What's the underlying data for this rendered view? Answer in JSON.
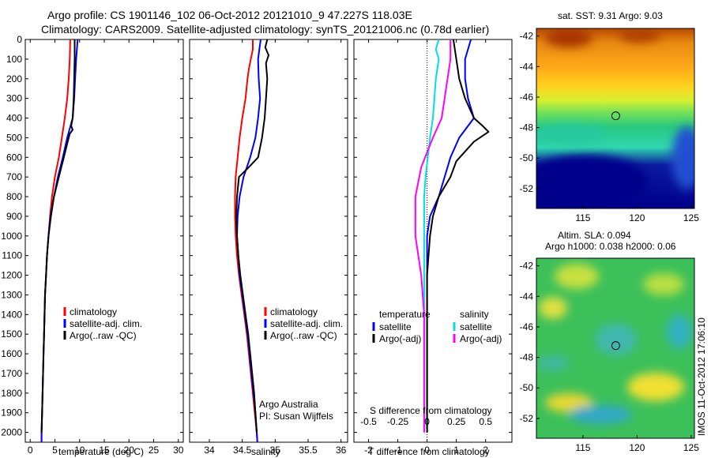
{
  "title": {
    "line1": "Argo profile: CS 1901146_102 06-Oct-2012 20121010_9 47.227S 118.03E",
    "line2": "Climatology: CARS2009. Satellite-adjusted climatology: synTS_20121006.nc (0.78d earlier)"
  },
  "credit": {
    "line1": "Argo Australia",
    "line2": "PI: Susan Wijffels"
  },
  "stamp": "IMOS 11-Oct-2012 17:06:10",
  "colors": {
    "climatology": "#ff0000",
    "satellite": "#0000ff",
    "argo": "#000000",
    "sal_satellite": "#00e0e0",
    "sal_argo": "#ff00ff"
  },
  "chart_data": [
    {
      "id": "temperature",
      "type": "line",
      "xlabel": "temperature (deg C)",
      "xlim": [
        -1,
        31
      ],
      "xticks": [
        0,
        5,
        10,
        15,
        20,
        25,
        30
      ],
      "ylim": [
        0,
        2050
      ],
      "yticks": [
        0,
        100,
        200,
        300,
        400,
        500,
        600,
        700,
        800,
        900,
        1000,
        1100,
        1200,
        1300,
        1400,
        1500,
        1600,
        1700,
        1800,
        1900,
        2000
      ],
      "legend": [
        "climatology",
        "satellite-adj. clim.",
        "Argo(..raw -QC)"
      ],
      "series": [
        {
          "name": "climatology",
          "color": "#ff0000",
          "points": [
            [
              8.1,
              0
            ],
            [
              8.0,
              100
            ],
            [
              7.8,
              200
            ],
            [
              7.5,
              300
            ],
            [
              7.0,
              400
            ],
            [
              6.4,
              500
            ],
            [
              5.8,
              600
            ],
            [
              5.0,
              700
            ],
            [
              4.4,
              800
            ],
            [
              4.0,
              900
            ],
            [
              3.7,
              1000
            ],
            [
              3.4,
              1100
            ],
            [
              3.2,
              1200
            ],
            [
              3.0,
              1300
            ],
            [
              2.9,
              1400
            ],
            [
              2.8,
              1500
            ],
            [
              2.7,
              1600
            ],
            [
              2.6,
              1700
            ],
            [
              2.5,
              1800
            ],
            [
              2.4,
              1900
            ],
            [
              2.3,
              2000
            ],
            [
              2.3,
              2050
            ]
          ]
        },
        {
          "name": "satellite-adj. clim.",
          "color": "#0000ff",
          "points": [
            [
              9.6,
              0
            ],
            [
              9.3,
              100
            ],
            [
              9.1,
              200
            ],
            [
              8.9,
              300
            ],
            [
              8.6,
              400
            ],
            [
              7.5,
              500
            ],
            [
              6.6,
              600
            ],
            [
              5.6,
              700
            ],
            [
              4.8,
              800
            ],
            [
              4.1,
              900
            ],
            [
              3.7,
              1000
            ],
            [
              3.4,
              1100
            ],
            [
              3.2,
              1200
            ],
            [
              3.0,
              1300
            ],
            [
              2.9,
              1400
            ],
            [
              2.8,
              1500
            ],
            [
              2.7,
              1600
            ],
            [
              2.6,
              1700
            ],
            [
              2.5,
              1800
            ],
            [
              2.4,
              1900
            ],
            [
              2.3,
              2000
            ],
            [
              2.3,
              2050
            ]
          ]
        },
        {
          "name": "Argo(..raw -QC)",
          "color": "#000000",
          "points": [
            [
              9.0,
              0
            ],
            [
              9.0,
              100
            ],
            [
              8.9,
              200
            ],
            [
              8.8,
              300
            ],
            [
              8.6,
              400
            ],
            [
              8.3,
              440
            ],
            [
              8.6,
              460
            ],
            [
              8.0,
              480
            ],
            [
              7.8,
              500
            ],
            [
              7.4,
              540
            ],
            [
              6.8,
              600
            ],
            [
              5.8,
              700
            ],
            [
              4.8,
              800
            ],
            [
              4.2,
              900
            ],
            [
              3.7,
              1000
            ],
            [
              3.4,
              1100
            ],
            [
              3.2,
              1200
            ],
            [
              3.0,
              1300
            ],
            [
              2.9,
              1400
            ],
            [
              2.8,
              1500
            ],
            [
              2.7,
              1600
            ],
            [
              2.6,
              1700
            ],
            [
              2.5,
              1800
            ],
            [
              2.4,
              1900
            ],
            [
              2.3,
              2000
            ]
          ]
        }
      ]
    },
    {
      "id": "salinity",
      "type": "line",
      "xlabel": "salinity",
      "xlim": [
        33.7,
        36.1
      ],
      "xticks": [
        34,
        34.5,
        35,
        35.5,
        36
      ],
      "ylim": [
        0,
        2050
      ],
      "legend": [
        "climatology",
        "satellite-adj. clim.",
        "Argo(..raw -QC)"
      ],
      "series": [
        {
          "name": "climatology",
          "color": "#ff0000",
          "points": [
            [
              34.66,
              0
            ],
            [
              34.66,
              50
            ],
            [
              34.63,
              100
            ],
            [
              34.6,
              150
            ],
            [
              34.58,
              200
            ],
            [
              34.55,
              300
            ],
            [
              34.5,
              400
            ],
            [
              34.46,
              500
            ],
            [
              34.43,
              600
            ],
            [
              34.4,
              700
            ],
            [
              34.39,
              800
            ],
            [
              34.39,
              900
            ],
            [
              34.4,
              1000
            ],
            [
              34.42,
              1100
            ],
            [
              34.45,
              1200
            ],
            [
              34.49,
              1300
            ],
            [
              34.53,
              1400
            ],
            [
              34.57,
              1500
            ],
            [
              34.6,
              1600
            ],
            [
              34.63,
              1700
            ],
            [
              34.66,
              1800
            ],
            [
              34.69,
              1900
            ],
            [
              34.72,
              2000
            ],
            [
              34.73,
              2050
            ]
          ]
        },
        {
          "name": "satellite-adj. clim.",
          "color": "#0000ff",
          "points": [
            [
              34.78,
              0
            ],
            [
              34.76,
              50
            ],
            [
              34.74,
              100
            ],
            [
              34.75,
              200
            ],
            [
              34.77,
              300
            ],
            [
              34.74,
              400
            ],
            [
              34.7,
              500
            ],
            [
              34.62,
              600
            ],
            [
              34.52,
              700
            ],
            [
              34.46,
              800
            ],
            [
              34.43,
              900
            ],
            [
              34.42,
              1000
            ],
            [
              34.44,
              1100
            ],
            [
              34.46,
              1200
            ],
            [
              34.5,
              1300
            ],
            [
              34.54,
              1400
            ],
            [
              34.58,
              1500
            ],
            [
              34.61,
              1600
            ],
            [
              34.64,
              1700
            ],
            [
              34.67,
              1800
            ],
            [
              34.7,
              1900
            ],
            [
              34.72,
              2000
            ],
            [
              34.73,
              2050
            ]
          ]
        },
        {
          "name": "Argo(..raw -QC)",
          "color": "#000000",
          "points": [
            [
              34.88,
              0
            ],
            [
              34.85,
              40
            ],
            [
              34.9,
              80
            ],
            [
              34.86,
              120
            ],
            [
              34.88,
              200
            ],
            [
              34.86,
              300
            ],
            [
              34.84,
              400
            ],
            [
              34.8,
              500
            ],
            [
              34.74,
              600
            ],
            [
              34.6,
              650
            ],
            [
              34.45,
              700
            ],
            [
              34.42,
              800
            ],
            [
              34.41,
              900
            ],
            [
              34.42,
              1000
            ],
            [
              34.44,
              1100
            ],
            [
              34.47,
              1200
            ],
            [
              34.51,
              1300
            ],
            [
              34.55,
              1400
            ],
            [
              34.59,
              1500
            ],
            [
              34.62,
              1600
            ],
            [
              34.65,
              1700
            ],
            [
              34.68,
              1800
            ],
            [
              34.7,
              1900
            ],
            [
              34.72,
              2000
            ]
          ]
        }
      ]
    },
    {
      "id": "difference",
      "type": "line",
      "xlabel": "T difference from climatology",
      "xlabel_top": "S difference from climatology",
      "xlim": [
        -2.5,
        2.9
      ],
      "xticks": [
        -2,
        -1,
        0,
        1,
        2
      ],
      "xticks_top": [
        "-0.5",
        "-0.25",
        "0",
        "0.25",
        "0.5"
      ],
      "ylim": [
        0,
        2050
      ],
      "legend": {
        "temperature_heading": "temperature",
        "salinity_heading": "salinity",
        "temperature": [
          "satellite",
          "Argo(-adj)"
        ],
        "salinity": [
          "satellite",
          "Argo(-adj)"
        ]
      },
      "series": [
        {
          "name": "temperature satellite",
          "color": "#0000ff",
          "points": [
            [
              1.5,
              0
            ],
            [
              1.3,
              100
            ],
            [
              1.3,
              200
            ],
            [
              1.4,
              300
            ],
            [
              1.6,
              400
            ],
            [
              1.1,
              500
            ],
            [
              0.8,
              600
            ],
            [
              0.6,
              700
            ],
            [
              0.4,
              800
            ],
            [
              0.1,
              900
            ],
            [
              0.0,
              1000
            ],
            [
              0.0,
              1500
            ],
            [
              0.0,
              2000
            ]
          ]
        },
        {
          "name": "temperature Argo(-adj)",
          "color": "#000000",
          "points": [
            [
              0.9,
              0
            ],
            [
              1.0,
              100
            ],
            [
              1.1,
              200
            ],
            [
              1.3,
              300
            ],
            [
              1.6,
              400
            ],
            [
              1.9,
              440
            ],
            [
              2.1,
              470
            ],
            [
              1.6,
              520
            ],
            [
              1.0,
              620
            ],
            [
              0.8,
              700
            ],
            [
              0.4,
              800
            ],
            [
              0.2,
              900
            ],
            [
              0.1,
              1000
            ],
            [
              0.0,
              1200
            ],
            [
              0.0,
              2000
            ]
          ]
        },
        {
          "name": "salinity satellite",
          "color": "#00e0e0",
          "points": [
            [
              0.4,
              0
            ],
            [
              0.3,
              50
            ],
            [
              0.4,
              100
            ],
            [
              0.3,
              200
            ],
            [
              0.2,
              400
            ],
            [
              0.1,
              500
            ],
            [
              -0.05,
              700
            ],
            [
              -0.1,
              800
            ],
            [
              -0.1,
              1000
            ],
            [
              -0.1,
              1300
            ],
            [
              -0.1,
              2000
            ]
          ]
        },
        {
          "name": "salinity Argo(-adj)",
          "color": "#ff00ff",
          "points": [
            [
              0.8,
              0
            ],
            [
              0.8,
              100
            ],
            [
              0.7,
              200
            ],
            [
              0.6,
              300
            ],
            [
              0.5,
              400
            ],
            [
              0.2,
              500
            ],
            [
              -0.2,
              650
            ],
            [
              -0.4,
              800
            ],
            [
              -0.4,
              1000
            ],
            [
              -0.2,
              1200
            ],
            [
              -0.1,
              1400
            ],
            [
              -0.1,
              2000
            ]
          ]
        }
      ]
    },
    {
      "id": "sst-map",
      "type": "heatmap",
      "title": "sat. SST: 9.31  Argo: 9.03",
      "xticks": [
        115,
        120,
        125
      ],
      "yticks": [
        -42,
        -44,
        -46,
        -48,
        -50,
        -52
      ],
      "xlim": [
        110.7,
        125.3
      ],
      "ylim": [
        -53.3,
        -41.5
      ],
      "marker": [
        118.03,
        -47.227
      ]
    },
    {
      "id": "sla-map",
      "type": "heatmap",
      "title_line1": "Altim. SLA: 0.094",
      "title_line2": "Argo h1000: 0.038 h2000: 0.06",
      "xticks": [
        115,
        120,
        125
      ],
      "yticks": [
        -42,
        -44,
        -46,
        -48,
        -50,
        -52
      ],
      "xlim": [
        110.7,
        125.3
      ],
      "ylim": [
        -53.3,
        -41.5
      ],
      "marker": [
        118.03,
        -47.227
      ]
    }
  ]
}
